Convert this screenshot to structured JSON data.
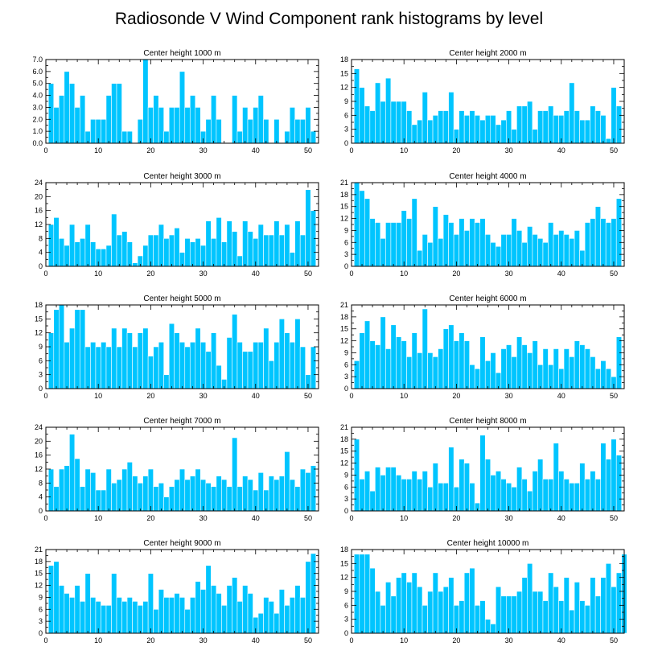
{
  "title": "Radiosonde V Wind Component rank histograms by level",
  "colors": {
    "bar": "#00c5ff",
    "axis": "#000000",
    "background": "#ffffff"
  },
  "chart_data": [
    {
      "type": "bar",
      "title": "Center height 1000 m",
      "xlim": [
        0,
        52
      ],
      "ylim": [
        0,
        7
      ],
      "xticks": [
        0,
        10,
        20,
        30,
        40,
        50
      ],
      "yticks": [
        0,
        1,
        2,
        3,
        4,
        5,
        6,
        7
      ],
      "ytick_labels": [
        "0.0",
        "1.0",
        "2.0",
        "3.0",
        "4.0",
        "5.0",
        "6.0",
        "7.0"
      ],
      "values": [
        5,
        3,
        4,
        6,
        5,
        3,
        4,
        1,
        2,
        2,
        2,
        4,
        5,
        5,
        1,
        1,
        0,
        2,
        7,
        3,
        4,
        3,
        1,
        3,
        3,
        6,
        3,
        4,
        3,
        1,
        2,
        4,
        2,
        0,
        0,
        4,
        1,
        3,
        2,
        3,
        4,
        2,
        0,
        2,
        0,
        1,
        3,
        2,
        2,
        3,
        1
      ]
    },
    {
      "type": "bar",
      "title": "Center height 2000 m",
      "xlim": [
        0,
        52
      ],
      "ylim": [
        0,
        18
      ],
      "xticks": [
        0,
        10,
        20,
        30,
        40,
        50
      ],
      "yticks": [
        0,
        3,
        6,
        9,
        12,
        15,
        18
      ],
      "ytick_labels": [
        "0",
        "3",
        "6",
        "9",
        "12",
        "15",
        "18"
      ],
      "values": [
        16,
        12,
        8,
        7,
        13,
        9,
        14,
        9,
        9,
        9,
        7,
        4,
        5,
        11,
        5,
        6,
        7,
        7,
        11,
        3,
        7,
        6,
        7,
        6,
        5,
        6,
        6,
        4,
        5,
        7,
        3,
        8,
        8,
        9,
        3,
        7,
        7,
        8,
        6,
        6,
        7,
        13,
        7,
        5,
        5,
        8,
        7,
        6,
        1,
        12,
        8
      ]
    },
    {
      "type": "bar",
      "title": "Center height 3000 m",
      "xlim": [
        0,
        52
      ],
      "ylim": [
        0,
        24
      ],
      "xticks": [
        0,
        10,
        20,
        30,
        40,
        50
      ],
      "yticks": [
        0,
        4,
        8,
        12,
        16,
        20,
        24
      ],
      "ytick_labels": [
        "0",
        "4",
        "8",
        "12",
        "16",
        "20",
        "24"
      ],
      "values": [
        12,
        14,
        8,
        6,
        12,
        7,
        8,
        12,
        7,
        5,
        5,
        6,
        15,
        9,
        10,
        7,
        1,
        3,
        6,
        9,
        9,
        12,
        8,
        9,
        11,
        4,
        8,
        7,
        8,
        6,
        13,
        8,
        14,
        7,
        13,
        10,
        3,
        13,
        10,
        8,
        12,
        9,
        9,
        13,
        9,
        12,
        4,
        13,
        9,
        22,
        16
      ]
    },
    {
      "type": "bar",
      "title": "Center height 4000 m",
      "xlim": [
        0,
        52
      ],
      "ylim": [
        0,
        21
      ],
      "xticks": [
        0,
        10,
        20,
        30,
        40,
        50
      ],
      "yticks": [
        0,
        3,
        6,
        9,
        12,
        15,
        18,
        21
      ],
      "ytick_labels": [
        "0",
        "3",
        "6",
        "9",
        "12",
        "15",
        "18",
        "21"
      ],
      "values": [
        21,
        19,
        17,
        12,
        11,
        7,
        11,
        11,
        11,
        14,
        12,
        17,
        4,
        8,
        6,
        15,
        7,
        13,
        11,
        8,
        12,
        9,
        12,
        11,
        12,
        8,
        6,
        5,
        8,
        8,
        12,
        9,
        6,
        10,
        8,
        7,
        6,
        11,
        8,
        9,
        8,
        7,
        9,
        4,
        11,
        12,
        15,
        12,
        11,
        12,
        17
      ]
    },
    {
      "type": "bar",
      "title": "Center height 5000 m",
      "xlim": [
        0,
        52
      ],
      "ylim": [
        0,
        18
      ],
      "xticks": [
        0,
        10,
        20,
        30,
        40,
        50
      ],
      "yticks": [
        0,
        3,
        6,
        9,
        12,
        15,
        18
      ],
      "ytick_labels": [
        "0",
        "3",
        "6",
        "9",
        "12",
        "15",
        "18"
      ],
      "values": [
        12,
        17,
        18,
        10,
        13,
        17,
        17,
        9,
        10,
        9,
        10,
        9,
        13,
        9,
        13,
        12,
        9,
        12,
        13,
        7,
        9,
        10,
        3,
        14,
        12,
        10,
        9,
        10,
        13,
        10,
        8,
        12,
        5,
        2,
        11,
        16,
        10,
        8,
        8,
        10,
        10,
        13,
        6,
        10,
        15,
        12,
        10,
        15,
        9,
        3,
        9
      ]
    },
    {
      "type": "bar",
      "title": "Center height 6000 m",
      "xlim": [
        0,
        52
      ],
      "ylim": [
        0,
        21
      ],
      "xticks": [
        0,
        10,
        20,
        30,
        40,
        50
      ],
      "yticks": [
        0,
        3,
        6,
        9,
        12,
        15,
        18,
        21
      ],
      "ytick_labels": [
        "0",
        "3",
        "6",
        "9",
        "12",
        "15",
        "18",
        "21"
      ],
      "values": [
        7,
        14,
        17,
        12,
        11,
        18,
        10,
        16,
        13,
        12,
        8,
        14,
        9,
        20,
        9,
        8,
        10,
        15,
        16,
        12,
        14,
        12,
        6,
        5,
        13,
        7,
        9,
        4,
        10,
        11,
        8,
        13,
        11,
        9,
        12,
        6,
        10,
        6,
        10,
        5,
        10,
        8,
        12,
        11,
        10,
        8,
        5,
        7,
        5,
        3,
        13
      ]
    },
    {
      "type": "bar",
      "title": "Center height 7000 m",
      "xlim": [
        0,
        52
      ],
      "ylim": [
        0,
        24
      ],
      "xticks": [
        0,
        10,
        20,
        30,
        40,
        50
      ],
      "yticks": [
        0,
        4,
        8,
        12,
        16,
        20,
        24
      ],
      "ytick_labels": [
        "0",
        "4",
        "8",
        "12",
        "16",
        "20",
        "24"
      ],
      "values": [
        12,
        7,
        12,
        13,
        22,
        15,
        7,
        12,
        11,
        6,
        6,
        12,
        8,
        9,
        12,
        14,
        10,
        8,
        10,
        12,
        7,
        8,
        4,
        7,
        9,
        12,
        9,
        10,
        12,
        9,
        8,
        7,
        10,
        9,
        7,
        21,
        7,
        10,
        9,
        6,
        11,
        6,
        10,
        9,
        10,
        17,
        9,
        7,
        12,
        11,
        13
      ]
    },
    {
      "type": "bar",
      "title": "Center height 8000 m",
      "xlim": [
        0,
        52
      ],
      "ylim": [
        0,
        21
      ],
      "xticks": [
        0,
        10,
        20,
        30,
        40,
        50
      ],
      "yticks": [
        0,
        3,
        6,
        9,
        12,
        15,
        18,
        21
      ],
      "ytick_labels": [
        "0",
        "3",
        "6",
        "9",
        "12",
        "15",
        "18",
        "21"
      ],
      "values": [
        18,
        8,
        10,
        5,
        11,
        9,
        11,
        11,
        9,
        8,
        8,
        10,
        8,
        10,
        6,
        12,
        7,
        7,
        16,
        6,
        13,
        12,
        7,
        2,
        19,
        13,
        9,
        10,
        8,
        7,
        6,
        11,
        8,
        5,
        10,
        13,
        8,
        8,
        17,
        10,
        8,
        7,
        7,
        12,
        8,
        10,
        8,
        17,
        13,
        18,
        14
      ]
    },
    {
      "type": "bar",
      "title": "Center height 9000 m",
      "xlim": [
        0,
        52
      ],
      "ylim": [
        0,
        21
      ],
      "xticks": [
        0,
        10,
        20,
        30,
        40,
        50
      ],
      "yticks": [
        0,
        3,
        6,
        9,
        12,
        15,
        18,
        21
      ],
      "ytick_labels": [
        "0",
        "3",
        "6",
        "9",
        "12",
        "15",
        "18",
        "21"
      ],
      "values": [
        17,
        18,
        12,
        10,
        9,
        12,
        8,
        15,
        9,
        8,
        7,
        7,
        15,
        9,
        8,
        9,
        8,
        7,
        8,
        15,
        6,
        11,
        9,
        9,
        10,
        9,
        6,
        9,
        13,
        11,
        17,
        12,
        10,
        7,
        12,
        14,
        8,
        12,
        10,
        4,
        5,
        9,
        8,
        5,
        11,
        7,
        9,
        12,
        9,
        18,
        20
      ]
    },
    {
      "type": "bar",
      "title": "Center height 10000 m",
      "xlim": [
        0,
        52
      ],
      "ylim": [
        0,
        18
      ],
      "xticks": [
        0,
        10,
        20,
        30,
        40,
        50
      ],
      "yticks": [
        0,
        3,
        6,
        9,
        12,
        15,
        18
      ],
      "ytick_labels": [
        "0",
        "3",
        "6",
        "9",
        "12",
        "15",
        "18"
      ],
      "values": [
        17,
        17,
        17,
        14,
        9,
        6,
        11,
        8,
        12,
        13,
        11,
        13,
        10,
        6,
        9,
        13,
        9,
        10,
        12,
        6,
        7,
        13,
        14,
        6,
        7,
        3,
        2,
        10,
        8,
        8,
        8,
        9,
        12,
        15,
        9,
        9,
        7,
        13,
        10,
        7,
        12,
        5,
        11,
        7,
        6,
        12,
        8,
        12,
        15,
        10,
        13,
        17
      ]
    }
  ]
}
